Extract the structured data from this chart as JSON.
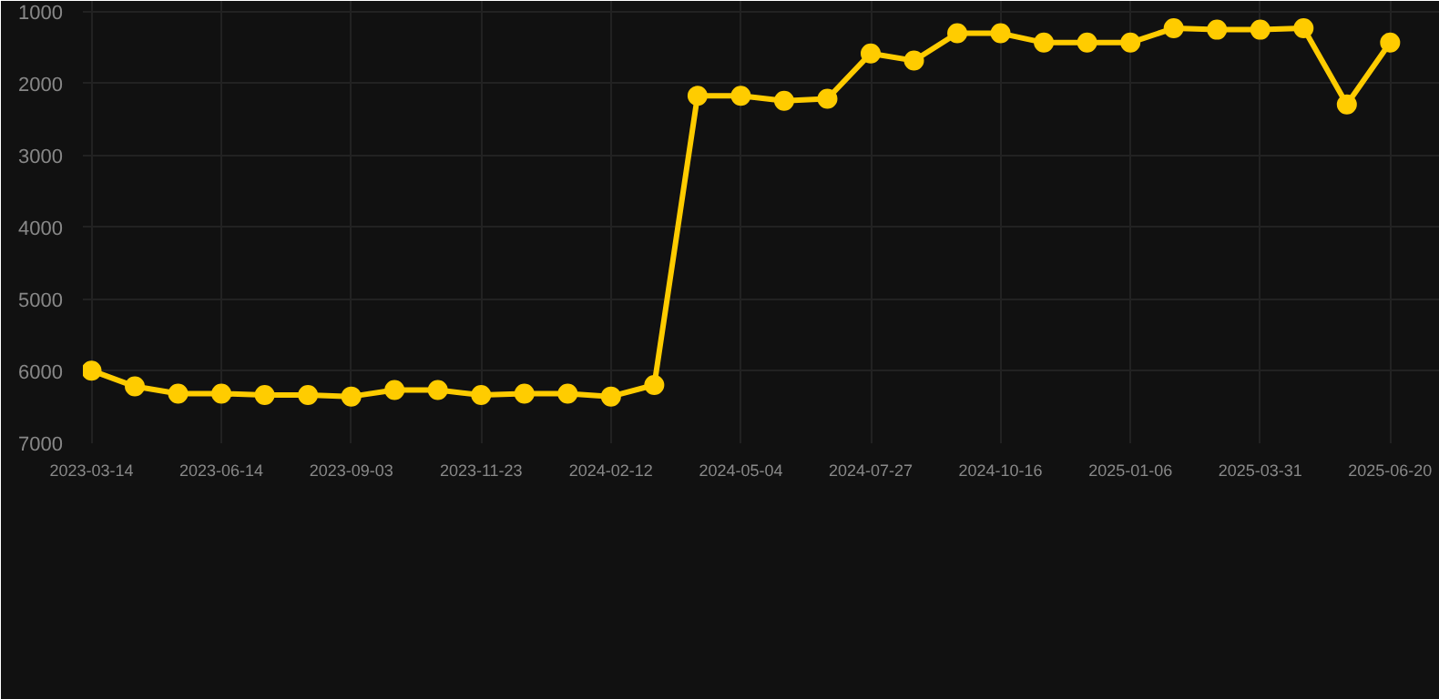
{
  "chart_data": {
    "type": "line",
    "categories": [
      "2023-03-14",
      null,
      null,
      "2023-06-14",
      null,
      null,
      "2023-09-03",
      null,
      null,
      "2023-11-23",
      null,
      null,
      "2024-02-12",
      null,
      null,
      "2024-05-04",
      null,
      null,
      "2024-07-27",
      null,
      null,
      "2024-10-16",
      null,
      null,
      "2025-01-06",
      null,
      null,
      "2025-03-31",
      null,
      null,
      "2025-06-20"
    ],
    "series": [
      {
        "color": "#ffcc00",
        "values": [
          5990,
          6210,
          6310,
          6310,
          6330,
          6330,
          6350,
          6260,
          6260,
          6330,
          6310,
          6310,
          6350,
          6190,
          2170,
          2170,
          2240,
          2210,
          1580,
          1680,
          1300,
          1300,
          1430,
          1430,
          1430,
          1230,
          1250,
          1250,
          1230,
          2290,
          1430
        ]
      }
    ],
    "ylim": [
      7000,
      850
    ],
    "yticks": [
      1000,
      2000,
      3000,
      4000,
      5000,
      6000,
      7000
    ],
    "grid": true,
    "marker": "circle",
    "line_style": "solid"
  }
}
